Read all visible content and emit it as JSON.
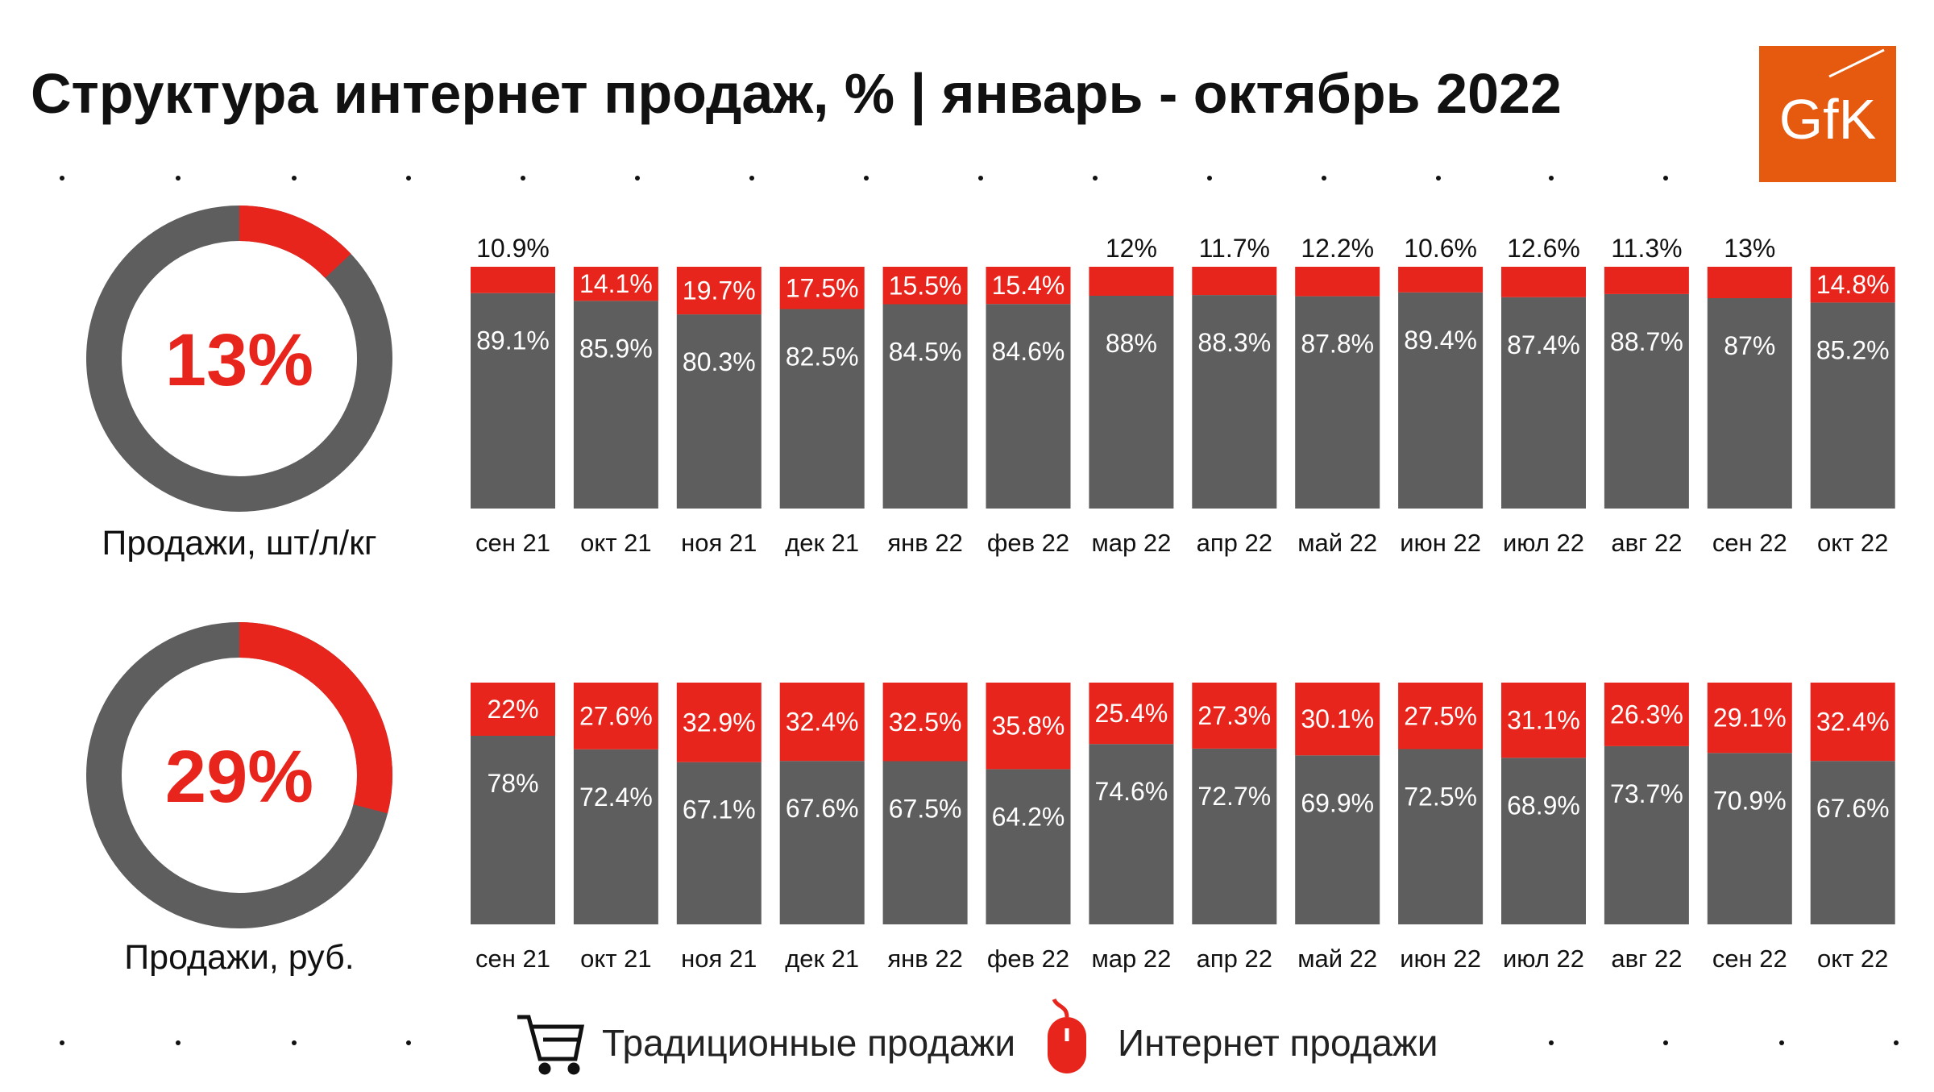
{
  "title": "Структура интернет продаж, % | январь - октябрь 2022",
  "logo": "GfK",
  "legend": [
    {
      "name": "Традиционные продажи",
      "color": "#5e5e5e"
    },
    {
      "name": "Интернет продажи",
      "color": "#e8251c"
    }
  ],
  "chart_data": [
    {
      "type": "donut",
      "label": "Продажи, шт/л/кг",
      "values": [
        13
      ],
      "value_labels": [
        "13%"
      ],
      "color": "#e8251c",
      "track_color": "#5e5e5e"
    },
    {
      "type": "stacked_bar",
      "categories": [
        "сен 21",
        "окт 21",
        "ноя 21",
        "дек 21",
        "янв 22",
        "фев 22",
        "мар 22",
        "апр 22",
        "май 22",
        "июн 22",
        "июл 22",
        "авг 22",
        "сен 22",
        "окт 22"
      ],
      "series": [
        {
          "color": "#5e5e5e",
          "values": [
            89.1,
            85.9,
            80.3,
            82.5,
            84.5,
            84.6,
            88,
            88.3,
            87.8,
            89.4,
            87.4,
            88.7,
            87,
            85.2
          ],
          "value_labels": [
            "89.1%",
            "85.9%",
            "80.3%",
            "82.5%",
            "84.5%",
            "84.6%",
            "88%",
            "88.3%",
            "87.8%",
            "89.4%",
            "87.4%",
            "88.7%",
            "87%",
            "85.2%"
          ]
        },
        {
          "color": "#e8251c",
          "values": [
            10.9,
            14.1,
            19.7,
            17.5,
            15.5,
            15.4,
            12,
            11.7,
            12.2,
            10.6,
            12.6,
            11.3,
            13,
            14.8
          ],
          "value_labels": [
            "10.9%",
            "14.1%",
            "19.7%",
            "17.5%",
            "15.5%",
            "15.4%",
            "12%",
            "11.7%",
            "12.2%",
            "10.6%",
            "12.6%",
            "11.3%",
            "13%",
            "14.8%"
          ]
        }
      ]
    },
    {
      "type": "donut",
      "label": "Продажи, руб.",
      "values": [
        29
      ],
      "value_labels": [
        "29%"
      ],
      "color": "#e8251c",
      "track_color": "#5e5e5e"
    },
    {
      "type": "stacked_bar",
      "categories": [
        "сен 21",
        "окт 21",
        "ноя 21",
        "дек 21",
        "янв 22",
        "фев 22",
        "мар 22",
        "апр 22",
        "май 22",
        "июн 22",
        "июл 22",
        "авг 22",
        "сен 22",
        "окт 22"
      ],
      "series": [
        {
          "color": "#5e5e5e",
          "values": [
            78,
            72.4,
            67.1,
            67.6,
            67.5,
            64.2,
            74.6,
            72.7,
            69.9,
            72.5,
            68.9,
            73.7,
            70.9,
            67.6
          ],
          "value_labels": [
            "78%",
            "72.4%",
            "67.1%",
            "67.6%",
            "67.5%",
            "64.2%",
            "74.6%",
            "72.7%",
            "69.9%",
            "72.5%",
            "68.9%",
            "73.7%",
            "70.9%",
            "67.6%"
          ]
        },
        {
          "color": "#e8251c",
          "values": [
            22,
            27.6,
            32.9,
            32.4,
            32.5,
            35.8,
            25.4,
            27.3,
            30.1,
            27.5,
            31.1,
            26.3,
            29.1,
            32.4
          ],
          "value_labels": [
            "22%",
            "27.6%",
            "32.9%",
            "32.4%",
            "32.5%",
            "35.8%",
            "25.4%",
            "27.3%",
            "30.1%",
            "27.5%",
            "31.1%",
            "26.3%",
            "29.1%",
            "32.4%"
          ]
        }
      ]
    }
  ]
}
